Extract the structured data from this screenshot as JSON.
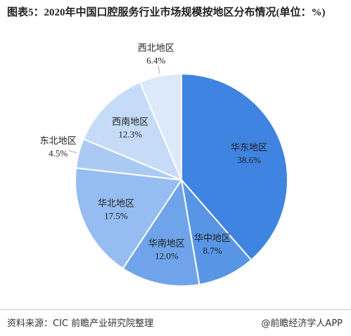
{
  "chart_data": {
    "type": "pie",
    "title": "图表5：2020年中国口腔服务行业市场规模按地区分布情况(单位：%)",
    "source": "资料来源：CIC 前瞻产业研究院整理",
    "credit": "@前瞻经济学人APP",
    "categories": [
      "华东地区",
      "华中地区",
      "华南地区",
      "华北地区",
      "东北地区",
      "西南地区",
      "西北地区"
    ],
    "values": [
      38.6,
      8.7,
      12.0,
      17.5,
      4.5,
      12.3,
      6.4
    ],
    "value_labels": [
      "38.6%",
      "8.7%",
      "12.0%",
      "17.5%",
      "4.5%",
      "12.3%",
      "6.4%"
    ],
    "colors": [
      "#3f84e0",
      "#5895e5",
      "#6fa4ea",
      "#95bdf1",
      "#abcaf3",
      "#c5dbf8",
      "#dce9fb"
    ]
  }
}
